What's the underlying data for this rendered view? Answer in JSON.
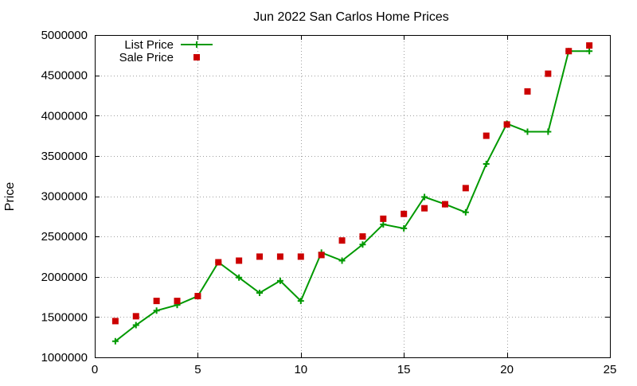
{
  "chart_data": {
    "type": "line",
    "title": "Jun 2022 San Carlos Home Prices",
    "xlabel": "",
    "ylabel": "Price",
    "xlim": [
      0,
      25
    ],
    "ylim": [
      1000000,
      5000000
    ],
    "x_ticks": [
      0,
      5,
      10,
      15,
      20,
      25
    ],
    "y_ticks": [
      1000000,
      1500000,
      2000000,
      2500000,
      3000000,
      3500000,
      4000000,
      4500000,
      5000000
    ],
    "grid": true,
    "legend_position": "top-left",
    "series": [
      {
        "name": "List Price",
        "style": "line+points",
        "marker": "plus",
        "color": "#009900",
        "x": [
          1,
          2,
          3,
          4,
          5,
          6,
          7,
          8,
          9,
          10,
          11,
          12,
          13,
          14,
          15,
          16,
          17,
          18,
          19,
          20,
          21,
          22,
          23,
          24
        ],
        "y": [
          1200000,
          1400000,
          1580000,
          1650000,
          1760000,
          2180000,
          1990000,
          1800000,
          1950000,
          1700000,
          2300000,
          2200000,
          2400000,
          2650000,
          2600000,
          2990000,
          2900000,
          2800000,
          3400000,
          3900000,
          3800000,
          3800000,
          4800000,
          4800000
        ]
      },
      {
        "name": "Sale Price",
        "style": "points",
        "marker": "square",
        "color": "#cc0000",
        "x": [
          1,
          2,
          3,
          4,
          5,
          6,
          7,
          8,
          9,
          10,
          11,
          12,
          13,
          14,
          15,
          16,
          17,
          18,
          19,
          20,
          21,
          22,
          23,
          24
        ],
        "y": [
          1450000,
          1510000,
          1700000,
          1700000,
          1760000,
          2180000,
          2200000,
          2250000,
          2250000,
          2250000,
          2270000,
          2450000,
          2500000,
          2720000,
          2780000,
          2850000,
          2900000,
          3100000,
          3750000,
          3890000,
          4300000,
          4520000,
          4800000,
          4870000
        ]
      }
    ]
  }
}
